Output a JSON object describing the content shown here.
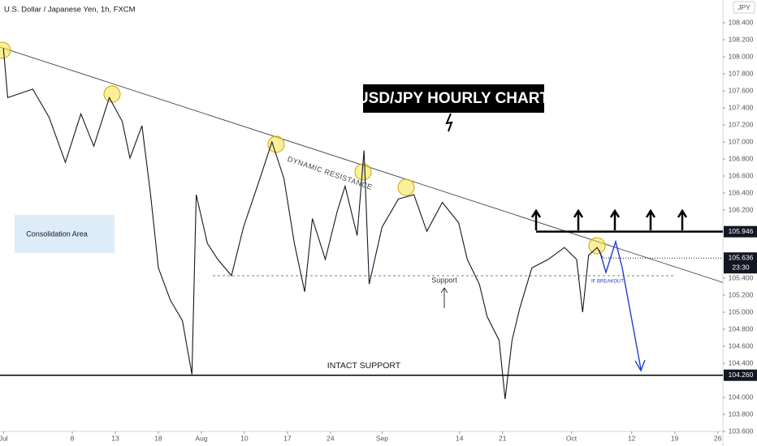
{
  "chart_data": {
    "type": "line",
    "title": "U.S. Dollar / Japanese Yen, 1h, FXCM",
    "currency": "JPY",
    "headline": "USD/JPY HOURLY CHART",
    "annotations": [
      "DYNAMIC RESISTANCE",
      "Consolidation Area",
      "Support",
      "INTACT SUPPORT",
      "IF BREAKOUT"
    ],
    "x": [
      0,
      0.5,
      3.4,
      5.3,
      7.2,
      9.0,
      10.5,
      12.3,
      13.8,
      14.7,
      16.1,
      17.1,
      18.0,
      19.4,
      20.8,
      21.9,
      22.4,
      23.7,
      24.9,
      26.5,
      27.9,
      29.8,
      31.2,
      32.6,
      33.8,
      35.0,
      35.9,
      37.4,
      38.8,
      39.7,
      41.1,
      41.9,
      42.5,
      44.0,
      45.9,
      47.7,
      49.2,
      51.0,
      52.9,
      53.9,
      55.3,
      56.2,
      57.6,
      58.3,
      59.1,
      60.0,
      61.4,
      63.3,
      65.2,
      66.6,
      67.3,
      68.0,
      69.0,
      69.6
    ],
    "values": [
      108.1,
      107.52,
      107.62,
      107.29,
      106.76,
      107.33,
      106.95,
      107.52,
      107.24,
      106.81,
      107.19,
      106.38,
      105.52,
      105.14,
      104.9,
      104.27,
      106.38,
      105.81,
      105.62,
      105.43,
      106.0,
      106.57,
      107.0,
      106.57,
      105.81,
      105.24,
      106.1,
      105.62,
      106.19,
      106.48,
      105.9,
      106.9,
      105.33,
      106.0,
      106.33,
      106.38,
      105.95,
      106.29,
      106.05,
      105.62,
      105.33,
      104.95,
      104.67,
      103.98,
      104.67,
      105.05,
      105.52,
      105.62,
      105.76,
      105.62,
      105.0,
      105.67,
      105.76,
      105.64
    ],
    "color": "#131722",
    "xlim": [
      -0.4,
      83.6
    ],
    "xticks": [
      {
        "value": 0,
        "label": "Jul"
      },
      8,
      13,
      18,
      {
        "value": 23,
        "label": "Aug"
      },
      {
        "value": 28,
        "label": "10"
      },
      {
        "value": 33,
        "label": "17"
      },
      {
        "value": 38,
        "label": "24"
      },
      {
        "value": 44,
        "label": "Sep"
      },
      {
        "value": 53,
        "label": "14"
      },
      {
        "value": 58,
        "label": "21"
      },
      {
        "value": 66,
        "label": "Oct"
      },
      {
        "value": 73,
        "label": "12"
      },
      {
        "value": 78,
        "label": "19"
      },
      {
        "value": 83,
        "label": "26"
      }
    ],
    "ylim": [
      103.6,
      108.667
    ],
    "yticks": [
      {
        "value": 103.6,
        "label": "103.600"
      },
      {
        "value": 103.8,
        "label": "103.800"
      },
      {
        "value": 104.0,
        "label": "104.000"
      },
      {
        "value": 104.4,
        "label": "104.400"
      },
      {
        "value": 104.6,
        "label": "104.600"
      },
      {
        "value": 104.8,
        "label": "104.800"
      },
      {
        "value": 105.0,
        "label": "105.000"
      },
      {
        "value": 105.2,
        "label": "105.200"
      },
      {
        "value": 105.4,
        "label": "105.400"
      },
      {
        "value": 106.2,
        "label": "106.200"
      },
      {
        "value": 106.4,
        "label": "106.400"
      },
      {
        "value": 106.6,
        "label": "106.600"
      },
      {
        "value": 106.8,
        "label": "106.800"
      },
      {
        "value": 107.0,
        "label": "107.000"
      },
      {
        "value": 107.2,
        "label": "107.200"
      },
      {
        "value": 107.4,
        "label": "107.400"
      },
      {
        "value": 107.6,
        "label": "107.600"
      },
      {
        "value": 107.8,
        "label": "107.800"
      },
      {
        "value": 108.0,
        "label": "108.000"
      },
      {
        "value": 108.2,
        "label": "108.200"
      },
      {
        "value": 108.4,
        "label": "108.400"
      }
    ],
    "price_levels": [
      {
        "value": 105.946,
        "label": "105.946"
      },
      {
        "value": 104.26,
        "label": "104.260"
      }
    ],
    "last_price": {
      "value": 105.636,
      "label": "105.636"
    },
    "countdown": "23:30"
  }
}
